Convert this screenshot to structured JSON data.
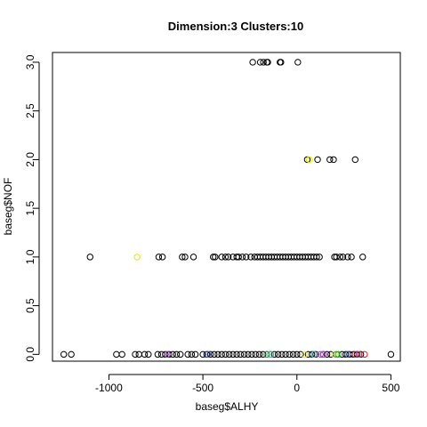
{
  "chart_data": {
    "type": "scatter",
    "title": "Dimension:3 Clusters:10",
    "xlabel": "baseg$ALHY",
    "ylabel": "baseg$NOF",
    "xlim": [
      -1300,
      550
    ],
    "ylim": [
      -0.07,
      3.1
    ],
    "xticks": [
      {
        "value": -1000,
        "label": "-1000"
      },
      {
        "value": -500,
        "label": "-500"
      },
      {
        "value": 0,
        "label": "0"
      },
      {
        "value": 500,
        "label": "500"
      }
    ],
    "yticks": [
      {
        "value": 0.0,
        "label": "0.0"
      },
      {
        "value": 0.5,
        "label": "0.5"
      },
      {
        "value": 1.0,
        "label": "1.0"
      },
      {
        "value": 1.5,
        "label": "1.5"
      },
      {
        "value": 2.0,
        "label": "2.0"
      },
      {
        "value": 2.5,
        "label": "2.5"
      },
      {
        "value": 3.0,
        "label": "3.0"
      }
    ],
    "grid": false,
    "marker": "open-circle",
    "series": [
      {
        "color": "#000000",
        "points": [
          [
            -235,
            3
          ],
          [
            -195,
            3
          ],
          [
            -178,
            3
          ],
          [
            -160,
            3
          ],
          [
            -155,
            3
          ],
          [
            -90,
            3
          ],
          [
            -85,
            3
          ],
          [
            5,
            3
          ],
          [
            55,
            2
          ],
          [
            110,
            2
          ],
          [
            175,
            2
          ],
          [
            195,
            2
          ],
          [
            310,
            2
          ],
          [
            -1100,
            1
          ],
          [
            -735,
            1
          ],
          [
            -715,
            1
          ],
          [
            -610,
            1
          ],
          [
            -595,
            1
          ],
          [
            -550,
            1
          ],
          [
            -445,
            1
          ],
          [
            -435,
            1
          ],
          [
            -400,
            1
          ],
          [
            -380,
            1
          ],
          [
            -365,
            1
          ],
          [
            -340,
            1
          ],
          [
            -320,
            1
          ],
          [
            -310,
            1
          ],
          [
            -290,
            1
          ],
          [
            -270,
            1
          ],
          [
            -245,
            1
          ],
          [
            -225,
            1
          ],
          [
            -210,
            1
          ],
          [
            -195,
            1
          ],
          [
            -180,
            1
          ],
          [
            -165,
            1
          ],
          [
            -150,
            1
          ],
          [
            -135,
            1
          ],
          [
            -120,
            1
          ],
          [
            -105,
            1
          ],
          [
            -90,
            1
          ],
          [
            -75,
            1
          ],
          [
            -60,
            1
          ],
          [
            -45,
            1
          ],
          [
            -30,
            1
          ],
          [
            -15,
            1
          ],
          [
            0,
            1
          ],
          [
            15,
            1
          ],
          [
            30,
            1
          ],
          [
            45,
            1
          ],
          [
            60,
            1
          ],
          [
            75,
            1
          ],
          [
            90,
            1
          ],
          [
            105,
            1
          ],
          [
            120,
            1
          ],
          [
            200,
            1
          ],
          [
            210,
            1
          ],
          [
            230,
            1
          ],
          [
            245,
            1
          ],
          [
            270,
            1
          ],
          [
            290,
            1
          ],
          [
            350,
            1
          ],
          [
            -1240,
            0
          ],
          [
            -1200,
            0
          ],
          [
            -960,
            0
          ],
          [
            -930,
            0
          ],
          [
            -860,
            0
          ],
          [
            -840,
            0
          ],
          [
            -810,
            0
          ],
          [
            -790,
            0
          ],
          [
            -740,
            0
          ],
          [
            -720,
            0
          ],
          [
            -700,
            0
          ],
          [
            -680,
            0
          ],
          [
            -660,
            0
          ],
          [
            -640,
            0
          ],
          [
            -620,
            0
          ],
          [
            -580,
            0
          ],
          [
            -560,
            0
          ],
          [
            -540,
            0
          ],
          [
            -500,
            0
          ],
          [
            -480,
            0
          ],
          [
            -460,
            0
          ],
          [
            -440,
            0
          ],
          [
            -420,
            0
          ],
          [
            -400,
            0
          ],
          [
            -380,
            0
          ],
          [
            -360,
            0
          ],
          [
            -340,
            0
          ],
          [
            -320,
            0
          ],
          [
            -300,
            0
          ],
          [
            -280,
            0
          ],
          [
            -260,
            0
          ],
          [
            -240,
            0
          ],
          [
            -220,
            0
          ],
          [
            -200,
            0
          ],
          [
            -180,
            0
          ],
          [
            -160,
            0
          ],
          [
            -140,
            0
          ],
          [
            -120,
            0
          ],
          [
            -100,
            0
          ],
          [
            -80,
            0
          ],
          [
            -60,
            0
          ],
          [
            -40,
            0
          ],
          [
            -20,
            0
          ],
          [
            0,
            0
          ],
          [
            20,
            0
          ],
          [
            60,
            0
          ],
          [
            80,
            0
          ],
          [
            100,
            0
          ],
          [
            140,
            0
          ],
          [
            160,
            0
          ],
          [
            180,
            0
          ],
          [
            240,
            0
          ],
          [
            260,
            0
          ],
          [
            280,
            0
          ],
          [
            300,
            0
          ],
          [
            320,
            0
          ],
          [
            340,
            0
          ],
          [
            500,
            0
          ]
        ]
      },
      {
        "color": "#e6e600",
        "points": [
          [
            -850,
            1
          ],
          [
            65,
            2
          ],
          [
            40,
            0
          ],
          [
            200,
            0
          ]
        ]
      },
      {
        "color": "#22aa22",
        "points": [
          [
            -160,
            0
          ],
          [
            210,
            0
          ],
          [
            220,
            0
          ]
        ]
      },
      {
        "color": "#aa33cc",
        "points": [
          [
            -690,
            0
          ],
          [
            125,
            0
          ],
          [
            140,
            0
          ],
          [
            330,
            0
          ]
        ]
      },
      {
        "color": "#2a4fd6",
        "points": [
          [
            -475,
            0
          ],
          [
            270,
            0
          ]
        ]
      },
      {
        "color": "#22bbbb",
        "points": [
          [
            -140,
            0
          ],
          [
            90,
            0
          ]
        ]
      },
      {
        "color": "#dd2222",
        "points": [
          [
            310,
            0
          ],
          [
            360,
            0
          ]
        ]
      }
    ]
  }
}
